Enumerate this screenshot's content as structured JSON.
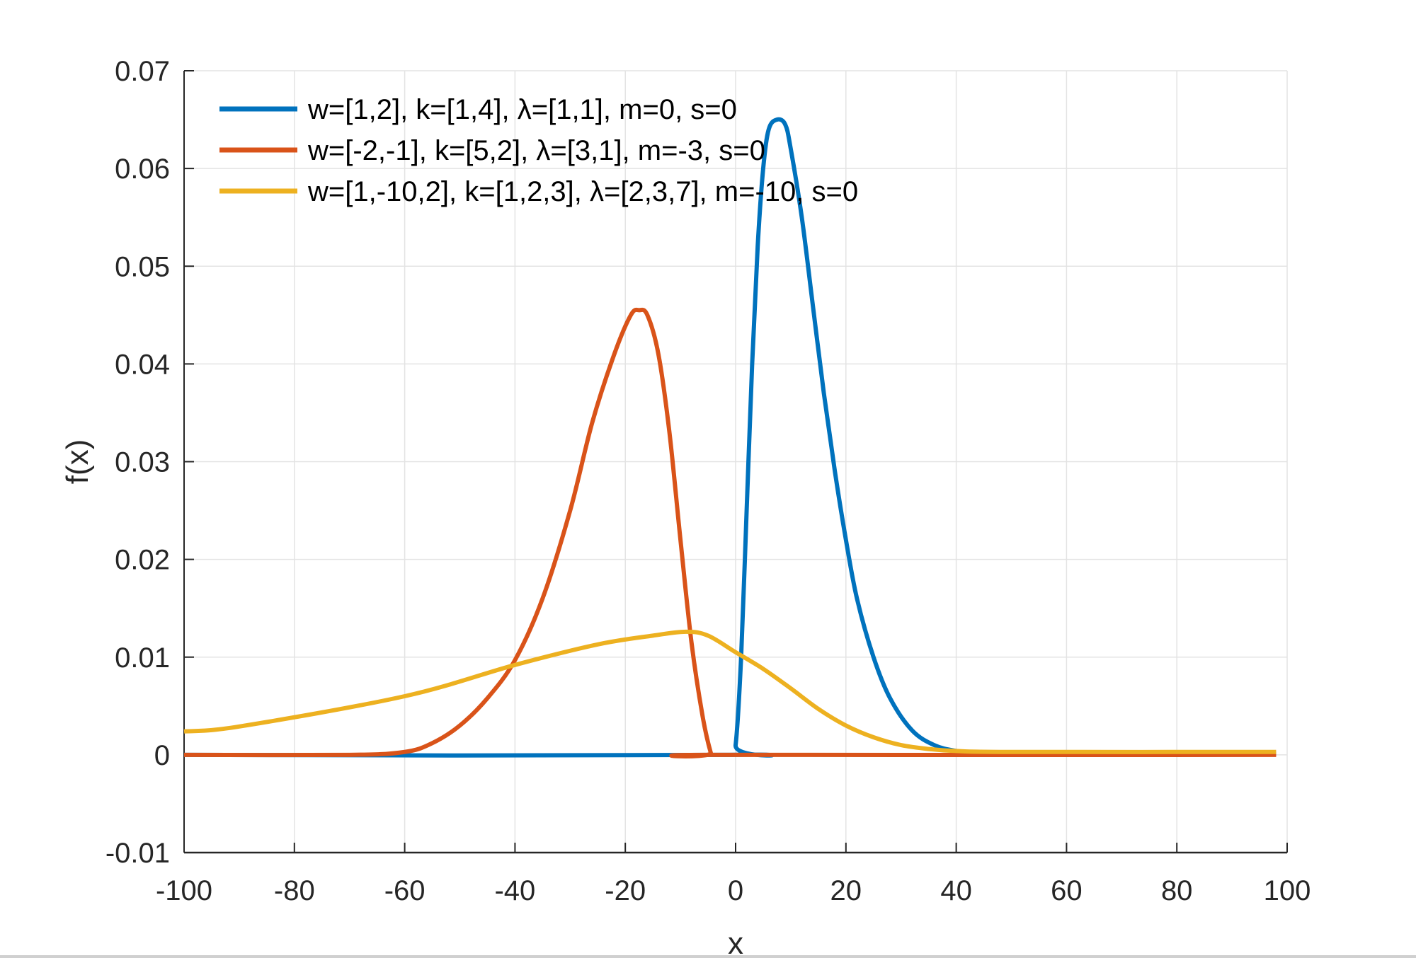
{
  "chart_data": {
    "type": "line",
    "title": "",
    "xlabel": "x",
    "ylabel": "f(x)",
    "xlim": [
      -100,
      100
    ],
    "ylim": [
      -0.01,
      0.07
    ],
    "xticks": [
      "-100",
      "-80",
      "-60",
      "-40",
      "-20",
      "0",
      "20",
      "40",
      "60",
      "80",
      "100"
    ],
    "yticks": [
      "-0.01",
      "0",
      "0.01",
      "0.02",
      "0.03",
      "0.04",
      "0.05",
      "0.06",
      "0.07"
    ],
    "grid": true,
    "legend_position": "top-left",
    "series": [
      {
        "name": "w=[1,2], k=[1,4], λ=[1,1], m=0, s=0",
        "color": "#0072BD",
        "x": [
          -100,
          -1,
          0,
          1,
          2,
          3,
          4,
          5,
          6,
          7.5,
          9,
          10,
          12,
          14,
          16,
          18,
          20,
          22,
          25,
          28,
          32,
          36,
          40,
          45,
          98
        ],
        "y": [
          0,
          0,
          0.001,
          0.01,
          0.025,
          0.04,
          0.052,
          0.06,
          0.064,
          0.065,
          0.0645,
          0.062,
          0.055,
          0.046,
          0.037,
          0.029,
          0.022,
          0.016,
          0.01,
          0.0058,
          0.0025,
          0.001,
          0.0004,
          0.0001,
          0.0001
        ]
      },
      {
        "name": "w=[-2,-1], k=[5,2], λ=[3,1], m=-3, s=0",
        "color": "#D95319",
        "x": [
          -100,
          -70,
          -60,
          -55,
          -50,
          -45,
          -40,
          -35,
          -30,
          -26,
          -22,
          -19,
          -17.5,
          -16,
          -14,
          -12,
          -10,
          -8,
          -6,
          -4.5,
          -4,
          98
        ],
        "y": [
          0,
          0,
          0.0003,
          0.0012,
          0.003,
          0.0058,
          0.0097,
          0.016,
          0.025,
          0.034,
          0.041,
          0.045,
          0.0455,
          0.045,
          0.041,
          0.033,
          0.022,
          0.0115,
          0.004,
          0.0002,
          0,
          0
        ]
      },
      {
        "name": "w=[1,-10,2], k=[1,2,3], λ=[2,3,7], m=-10, s=0",
        "color": "#EDB120",
        "x": [
          -100,
          -90,
          -60,
          -40,
          -25,
          -15,
          -9,
          -5,
          0,
          5,
          10,
          15,
          20,
          25,
          30,
          35,
          40,
          50,
          98
        ],
        "y": [
          0.0024,
          0.0029,
          0.006,
          0.0092,
          0.0113,
          0.0122,
          0.0126,
          0.0122,
          0.0105,
          0.0088,
          0.0068,
          0.0047,
          0.003,
          0.0018,
          0.001,
          0.0006,
          0.0004,
          0.0003,
          0.0003
        ]
      }
    ]
  }
}
